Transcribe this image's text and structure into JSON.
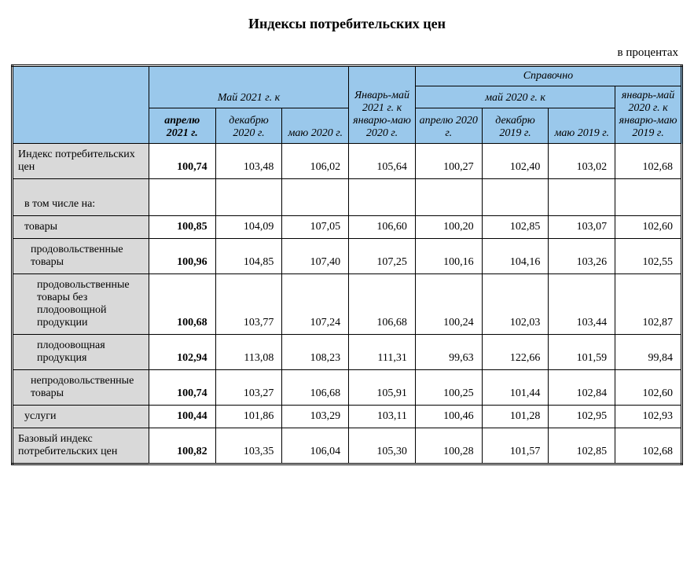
{
  "title": "Индексы потребительских цен",
  "unit_label": "в процентах",
  "colors": {
    "header_bg": "#9ac8eb",
    "label_bg": "#d9d9d9",
    "border": "#000000",
    "background": "#ffffff",
    "text": "#000000"
  },
  "typography": {
    "family": "Times New Roman",
    "title_fontsize_pt": 14,
    "body_fontsize_pt": 11,
    "header_style": "italic"
  },
  "header": {
    "group_may2021": "Май 2021 г. к",
    "col1": "апрелю 2021 г.",
    "col2": "декабрю 2020 г.",
    "col3": "маю 2020 г.",
    "col4": "Январь-май 2021 г. к январю-маю 2020 г.",
    "group_ref": "Справочно",
    "group_may2020": "май 2020 г. к",
    "col5": "апрелю 2020 г.",
    "col6": "декабрю 2019 г.",
    "col7": "маю 2019 г.",
    "col8": "январь-май 2020 г. к январю-маю 2019 г."
  },
  "rows": [
    {
      "label": "Индекс потребительских цен",
      "indent": 0,
      "spacer": false,
      "v": [
        "100,74",
        "103,48",
        "106,02",
        "105,64",
        "100,27",
        "102,40",
        "103,02",
        "102,68"
      ]
    },
    {
      "label": "в том числе на:",
      "indent": 1,
      "spacer": true,
      "v": [
        "",
        "",
        "",
        "",
        "",
        "",
        "",
        ""
      ]
    },
    {
      "label": "товары",
      "indent": 1,
      "spacer": false,
      "v": [
        "100,85",
        "104,09",
        "107,05",
        "106,60",
        "100,20",
        "102,85",
        "103,07",
        "102,60"
      ]
    },
    {
      "label": "продовольственные товары",
      "indent": 2,
      "spacer": false,
      "v": [
        "100,96",
        "104,85",
        "107,40",
        "107,25",
        "100,16",
        "104,16",
        "103,26",
        "102,55"
      ]
    },
    {
      "label": "продовольственные товары без плодоовощной продукции",
      "indent": 3,
      "spacer": false,
      "v": [
        "100,68",
        "103,77",
        "107,24",
        "106,68",
        "100,24",
        "102,03",
        "103,44",
        "102,87"
      ]
    },
    {
      "label": "плодоовощная продукция",
      "indent": 3,
      "spacer": false,
      "v": [
        "102,94",
        "113,08",
        "108,23",
        "111,31",
        "99,63",
        "122,66",
        "101,59",
        "99,84"
      ]
    },
    {
      "label": "непродовольствен­ные товары",
      "indent": 2,
      "spacer": false,
      "v": [
        "100,74",
        "103,27",
        "106,68",
        "105,91",
        "100,25",
        "101,44",
        "102,84",
        "102,60"
      ]
    },
    {
      "label": "услуги",
      "indent": 1,
      "spacer": false,
      "v": [
        "100,44",
        "101,86",
        "103,29",
        "103,11",
        "100,46",
        "101,28",
        "102,95",
        "102,93"
      ]
    },
    {
      "label": "Базовый индекс потребительских цен",
      "indent": 0,
      "spacer": false,
      "v": [
        "100,82",
        "103,35",
        "106,04",
        "105,30",
        "100,28",
        "101,57",
        "102,85",
        "102,68"
      ]
    }
  ]
}
